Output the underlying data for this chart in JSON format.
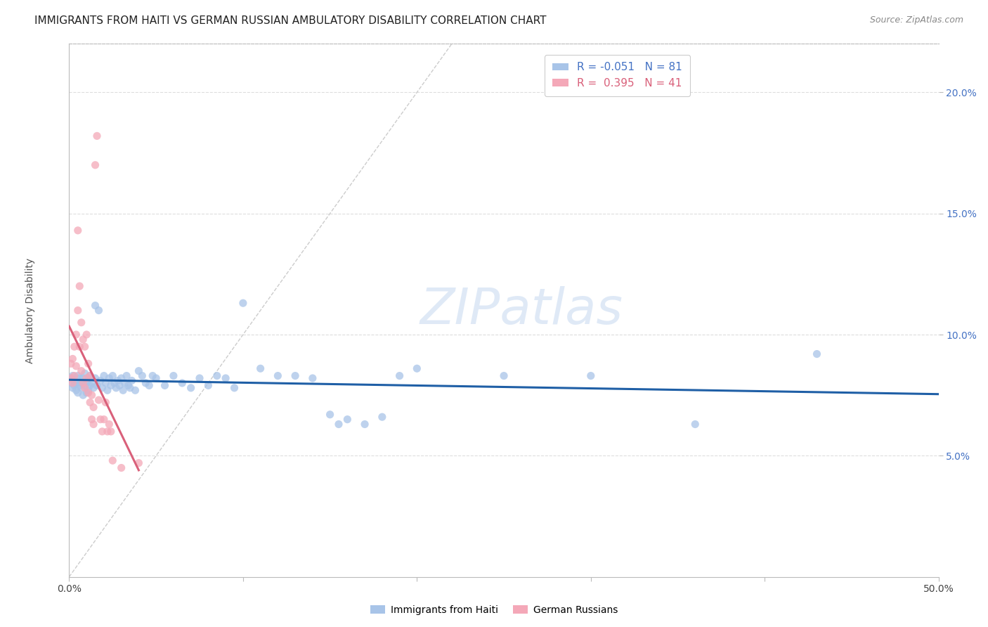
{
  "title": "IMMIGRANTS FROM HAITI VS GERMAN RUSSIAN AMBULATORY DISABILITY CORRELATION CHART",
  "source": "Source: ZipAtlas.com",
  "ylabel": "Ambulatory Disability",
  "watermark": "ZIPatlas",
  "xlim": [
    0.0,
    0.5
  ],
  "ylim": [
    0.0,
    0.22
  ],
  "yticks": [
    0.05,
    0.1,
    0.15,
    0.2
  ],
  "ytick_labels": [
    "5.0%",
    "10.0%",
    "15.0%",
    "20.0%"
  ],
  "xticks": [
    0.0,
    0.1,
    0.2,
    0.3,
    0.4,
    0.5
  ],
  "xtick_labels": [
    "0.0%",
    "",
    "",
    "",
    "",
    "50.0%"
  ],
  "legend_haiti_R": "-0.051",
  "legend_haiti_N": "81",
  "legend_german_R": "0.395",
  "legend_german_N": "41",
  "haiti_color": "#a8c4e8",
  "german_color": "#f4a8b8",
  "trendline_haiti_color": "#1f5fa6",
  "trendline_german_color": "#d9607a",
  "diagonal_color": "#cccccc",
  "background_color": "#ffffff",
  "grid_color": "#dddddd",
  "haiti_points": [
    [
      0.001,
      0.08
    ],
    [
      0.001,
      0.082
    ],
    [
      0.002,
      0.078
    ],
    [
      0.002,
      0.083
    ],
    [
      0.003,
      0.079
    ],
    [
      0.003,
      0.081
    ],
    [
      0.004,
      0.08
    ],
    [
      0.004,
      0.077
    ],
    [
      0.005,
      0.083
    ],
    [
      0.005,
      0.076
    ],
    [
      0.006,
      0.079
    ],
    [
      0.006,
      0.082
    ],
    [
      0.007,
      0.08
    ],
    [
      0.007,
      0.078
    ],
    [
      0.008,
      0.082
    ],
    [
      0.008,
      0.075
    ],
    [
      0.009,
      0.079
    ],
    [
      0.009,
      0.084
    ],
    [
      0.01,
      0.08
    ],
    [
      0.01,
      0.076
    ],
    [
      0.011,
      0.082
    ],
    [
      0.011,
      0.077
    ],
    [
      0.012,
      0.079
    ],
    [
      0.012,
      0.083
    ],
    [
      0.013,
      0.08
    ],
    [
      0.014,
      0.078
    ],
    [
      0.015,
      0.112
    ],
    [
      0.015,
      0.082
    ],
    [
      0.016,
      0.079
    ],
    [
      0.017,
      0.11
    ],
    [
      0.018,
      0.081
    ],
    [
      0.019,
      0.078
    ],
    [
      0.02,
      0.083
    ],
    [
      0.021,
      0.08
    ],
    [
      0.022,
      0.077
    ],
    [
      0.023,
      0.082
    ],
    [
      0.024,
      0.079
    ],
    [
      0.025,
      0.083
    ],
    [
      0.026,
      0.08
    ],
    [
      0.027,
      0.078
    ],
    [
      0.028,
      0.081
    ],
    [
      0.029,
      0.079
    ],
    [
      0.03,
      0.082
    ],
    [
      0.031,
      0.077
    ],
    [
      0.032,
      0.08
    ],
    [
      0.033,
      0.083
    ],
    [
      0.034,
      0.079
    ],
    [
      0.035,
      0.078
    ],
    [
      0.036,
      0.081
    ],
    [
      0.038,
      0.077
    ],
    [
      0.04,
      0.085
    ],
    [
      0.042,
      0.083
    ],
    [
      0.044,
      0.08
    ],
    [
      0.046,
      0.079
    ],
    [
      0.048,
      0.083
    ],
    [
      0.05,
      0.082
    ],
    [
      0.055,
      0.079
    ],
    [
      0.06,
      0.083
    ],
    [
      0.065,
      0.08
    ],
    [
      0.07,
      0.078
    ],
    [
      0.075,
      0.082
    ],
    [
      0.08,
      0.079
    ],
    [
      0.085,
      0.083
    ],
    [
      0.09,
      0.082
    ],
    [
      0.095,
      0.078
    ],
    [
      0.1,
      0.113
    ],
    [
      0.11,
      0.086
    ],
    [
      0.12,
      0.083
    ],
    [
      0.13,
      0.083
    ],
    [
      0.14,
      0.082
    ],
    [
      0.15,
      0.067
    ],
    [
      0.155,
      0.063
    ],
    [
      0.16,
      0.065
    ],
    [
      0.17,
      0.063
    ],
    [
      0.18,
      0.066
    ],
    [
      0.19,
      0.083
    ],
    [
      0.2,
      0.086
    ],
    [
      0.25,
      0.083
    ],
    [
      0.3,
      0.083
    ],
    [
      0.36,
      0.063
    ],
    [
      0.43,
      0.092
    ]
  ],
  "german_points": [
    [
      0.001,
      0.082
    ],
    [
      0.001,
      0.088
    ],
    [
      0.002,
      0.09
    ],
    [
      0.002,
      0.08
    ],
    [
      0.003,
      0.095
    ],
    [
      0.003,
      0.083
    ],
    [
      0.004,
      0.1
    ],
    [
      0.004,
      0.087
    ],
    [
      0.005,
      0.11
    ],
    [
      0.005,
      0.143
    ],
    [
      0.006,
      0.12
    ],
    [
      0.006,
      0.095
    ],
    [
      0.007,
      0.105
    ],
    [
      0.007,
      0.085
    ],
    [
      0.008,
      0.098
    ],
    [
      0.008,
      0.08
    ],
    [
      0.009,
      0.095
    ],
    [
      0.009,
      0.078
    ],
    [
      0.01,
      0.1
    ],
    [
      0.01,
      0.082
    ],
    [
      0.011,
      0.088
    ],
    [
      0.011,
      0.076
    ],
    [
      0.012,
      0.083
    ],
    [
      0.012,
      0.072
    ],
    [
      0.013,
      0.075
    ],
    [
      0.013,
      0.065
    ],
    [
      0.014,
      0.07
    ],
    [
      0.014,
      0.063
    ],
    [
      0.015,
      0.17
    ],
    [
      0.016,
      0.182
    ],
    [
      0.017,
      0.073
    ],
    [
      0.018,
      0.065
    ],
    [
      0.019,
      0.06
    ],
    [
      0.02,
      0.065
    ],
    [
      0.021,
      0.072
    ],
    [
      0.022,
      0.06
    ],
    [
      0.023,
      0.063
    ],
    [
      0.024,
      0.06
    ],
    [
      0.025,
      0.048
    ],
    [
      0.03,
      0.045
    ],
    [
      0.04,
      0.047
    ]
  ],
  "title_fontsize": 11,
  "axis_label_fontsize": 10,
  "tick_fontsize": 10,
  "legend_fontsize": 11,
  "source_fontsize": 9
}
